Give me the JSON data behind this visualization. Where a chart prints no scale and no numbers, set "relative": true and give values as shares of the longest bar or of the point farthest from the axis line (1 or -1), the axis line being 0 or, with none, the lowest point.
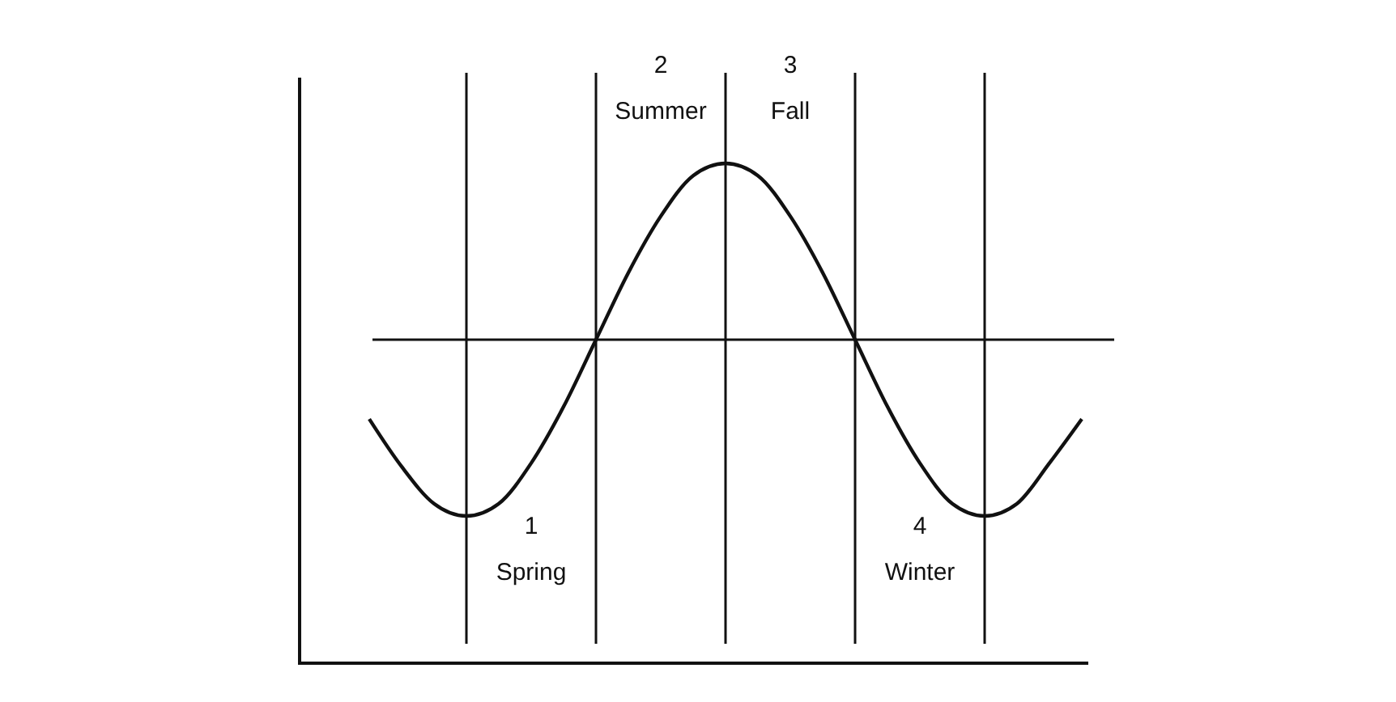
{
  "chart_data": {
    "type": "line",
    "relative": true,
    "grid": "x",
    "line_style": "solid",
    "categories": [
      null,
      null,
      null,
      null,
      null,
      null,
      null,
      null,
      null,
      null,
      null,
      null,
      null,
      null,
      null,
      null,
      null,
      null,
      null,
      null,
      null,
      null,
      null
    ],
    "series": [
      {
        "color": "#111111",
        "values": [
          -0.45,
          -0.72,
          -0.93,
          -1,
          -0.93,
          -0.7,
          -0.38,
          0,
          0.38,
          0.7,
          0.93,
          1,
          0.93,
          0.7,
          0.38,
          0,
          -0.38,
          -0.7,
          -0.93,
          -1,
          -0.93,
          -0.7,
          -0.45
        ]
      }
    ],
    "annotations": [
      "1 Spring",
      "2 Summer",
      "3 Fall",
      "4 Winter"
    ]
  }
}
